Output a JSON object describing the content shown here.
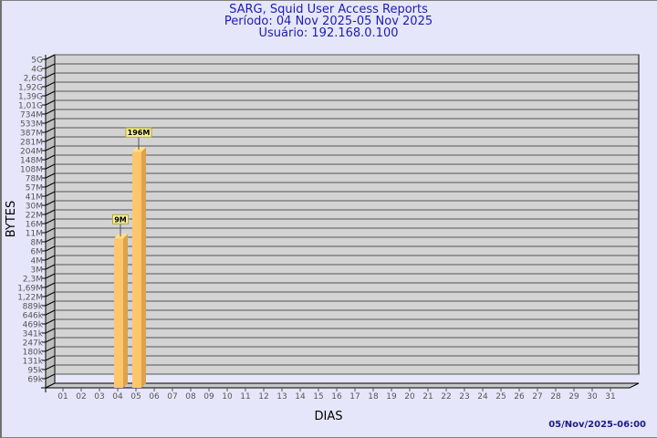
{
  "header": {
    "title": "SARG, Squid User Access Reports",
    "period": "Período: 04 Nov 2025-05 Nov 2025",
    "user": "Usuário: 192.168.0.100"
  },
  "footer": {
    "timestamp": "05/Nov/2025-06:00"
  },
  "colors": {
    "background": "#e6e6fa",
    "plot": "#d3d3d3",
    "bar_front": "#ffc66b",
    "bar_side": "#dda24c",
    "title": "#1c1cb0"
  },
  "chart_data": {
    "type": "bar",
    "title": "SARG, Squid User Access Reports",
    "xlabel": "DIAS",
    "ylabel": "BYTES",
    "y_scale": "log",
    "grid": true,
    "y_tick_labels": [
      "5G",
      "4G",
      "2,6G",
      "1,92G",
      "1,39G",
      "1,01G",
      "734M",
      "533M",
      "387M",
      "281M",
      "204M",
      "148M",
      "108M",
      "78M",
      "57M",
      "41M",
      "30M",
      "22M",
      "16M",
      "11M",
      "8M",
      "6M",
      "4M",
      "3M",
      "2,3M",
      "1,69M",
      "1,22M",
      "889k",
      "646k",
      "469k",
      "341k",
      "247k",
      "180k",
      "131k",
      "95k",
      "69k"
    ],
    "categories": [
      "01",
      "02",
      "03",
      "04",
      "05",
      "06",
      "07",
      "08",
      "09",
      "10",
      "11",
      "12",
      "13",
      "14",
      "15",
      "16",
      "17",
      "18",
      "19",
      "20",
      "21",
      "22",
      "23",
      "24",
      "25",
      "26",
      "27",
      "28",
      "29",
      "30",
      "31"
    ],
    "bars": [
      {
        "category": "04",
        "value": 9000000,
        "label": "9M"
      },
      {
        "category": "05",
        "value": 196000000,
        "label": "196M"
      }
    ]
  }
}
